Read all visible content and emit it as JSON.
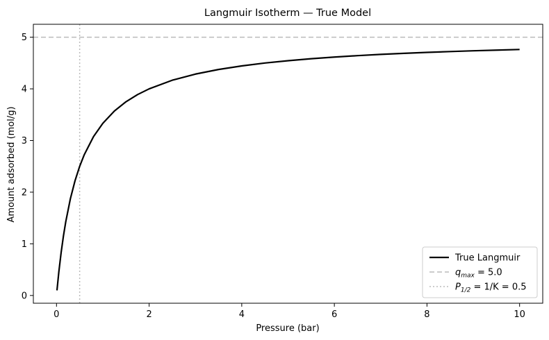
{
  "chart_data": {
    "type": "line",
    "title": "Langmuir Isotherm — True Model",
    "xlabel": "Pressure (bar)",
    "ylabel": "Amount adsorbed (mol/g)",
    "xlim": [
      -0.5,
      10.5
    ],
    "ylim": [
      -0.15,
      5.25
    ],
    "xticks": [
      0,
      2,
      4,
      6,
      8,
      10
    ],
    "yticks": [
      0,
      1,
      2,
      3,
      4,
      5
    ],
    "xtick_labels": [
      "0",
      "2",
      "4",
      "6",
      "8",
      "10"
    ],
    "ytick_labels": [
      "0",
      "1",
      "2",
      "3",
      "4",
      "5"
    ],
    "grid": false,
    "legend_position": "lower-right",
    "series": [
      {
        "name": "True Langmuir",
        "color": "#000000",
        "style": "solid",
        "x": [
          0.01,
          0.05,
          0.1,
          0.15,
          0.2,
          0.3,
          0.4,
          0.5,
          0.6,
          0.8,
          1.0,
          1.25,
          1.5,
          1.75,
          2.0,
          2.5,
          3.0,
          3.5,
          4.0,
          4.5,
          5.0,
          5.5,
          6.0,
          6.5,
          7.0,
          7.5,
          8.0,
          8.5,
          9.0,
          9.5,
          10.0
        ],
        "y": [
          0.098,
          0.455,
          0.833,
          1.154,
          1.429,
          1.875,
          2.222,
          2.5,
          2.727,
          3.077,
          3.333,
          3.571,
          3.75,
          3.889,
          4.0,
          4.167,
          4.286,
          4.375,
          4.444,
          4.5,
          4.545,
          4.583,
          4.615,
          4.643,
          4.667,
          4.688,
          4.706,
          4.722,
          4.737,
          4.75,
          4.762
        ]
      }
    ],
    "reference_lines": [
      {
        "orientation": "horizontal",
        "value": 5.0,
        "color": "#bbbbbb",
        "style": "dashed",
        "label_symbol": "q",
        "label_sub": "max",
        "label_rest": " = 5.0"
      },
      {
        "orientation": "vertical",
        "value": 0.5,
        "color": "#bbbbbb",
        "style": "dotted",
        "label_symbol": "P",
        "label_sub": "1/2",
        "label_rest": " = 1/K = 0.5"
      }
    ]
  }
}
